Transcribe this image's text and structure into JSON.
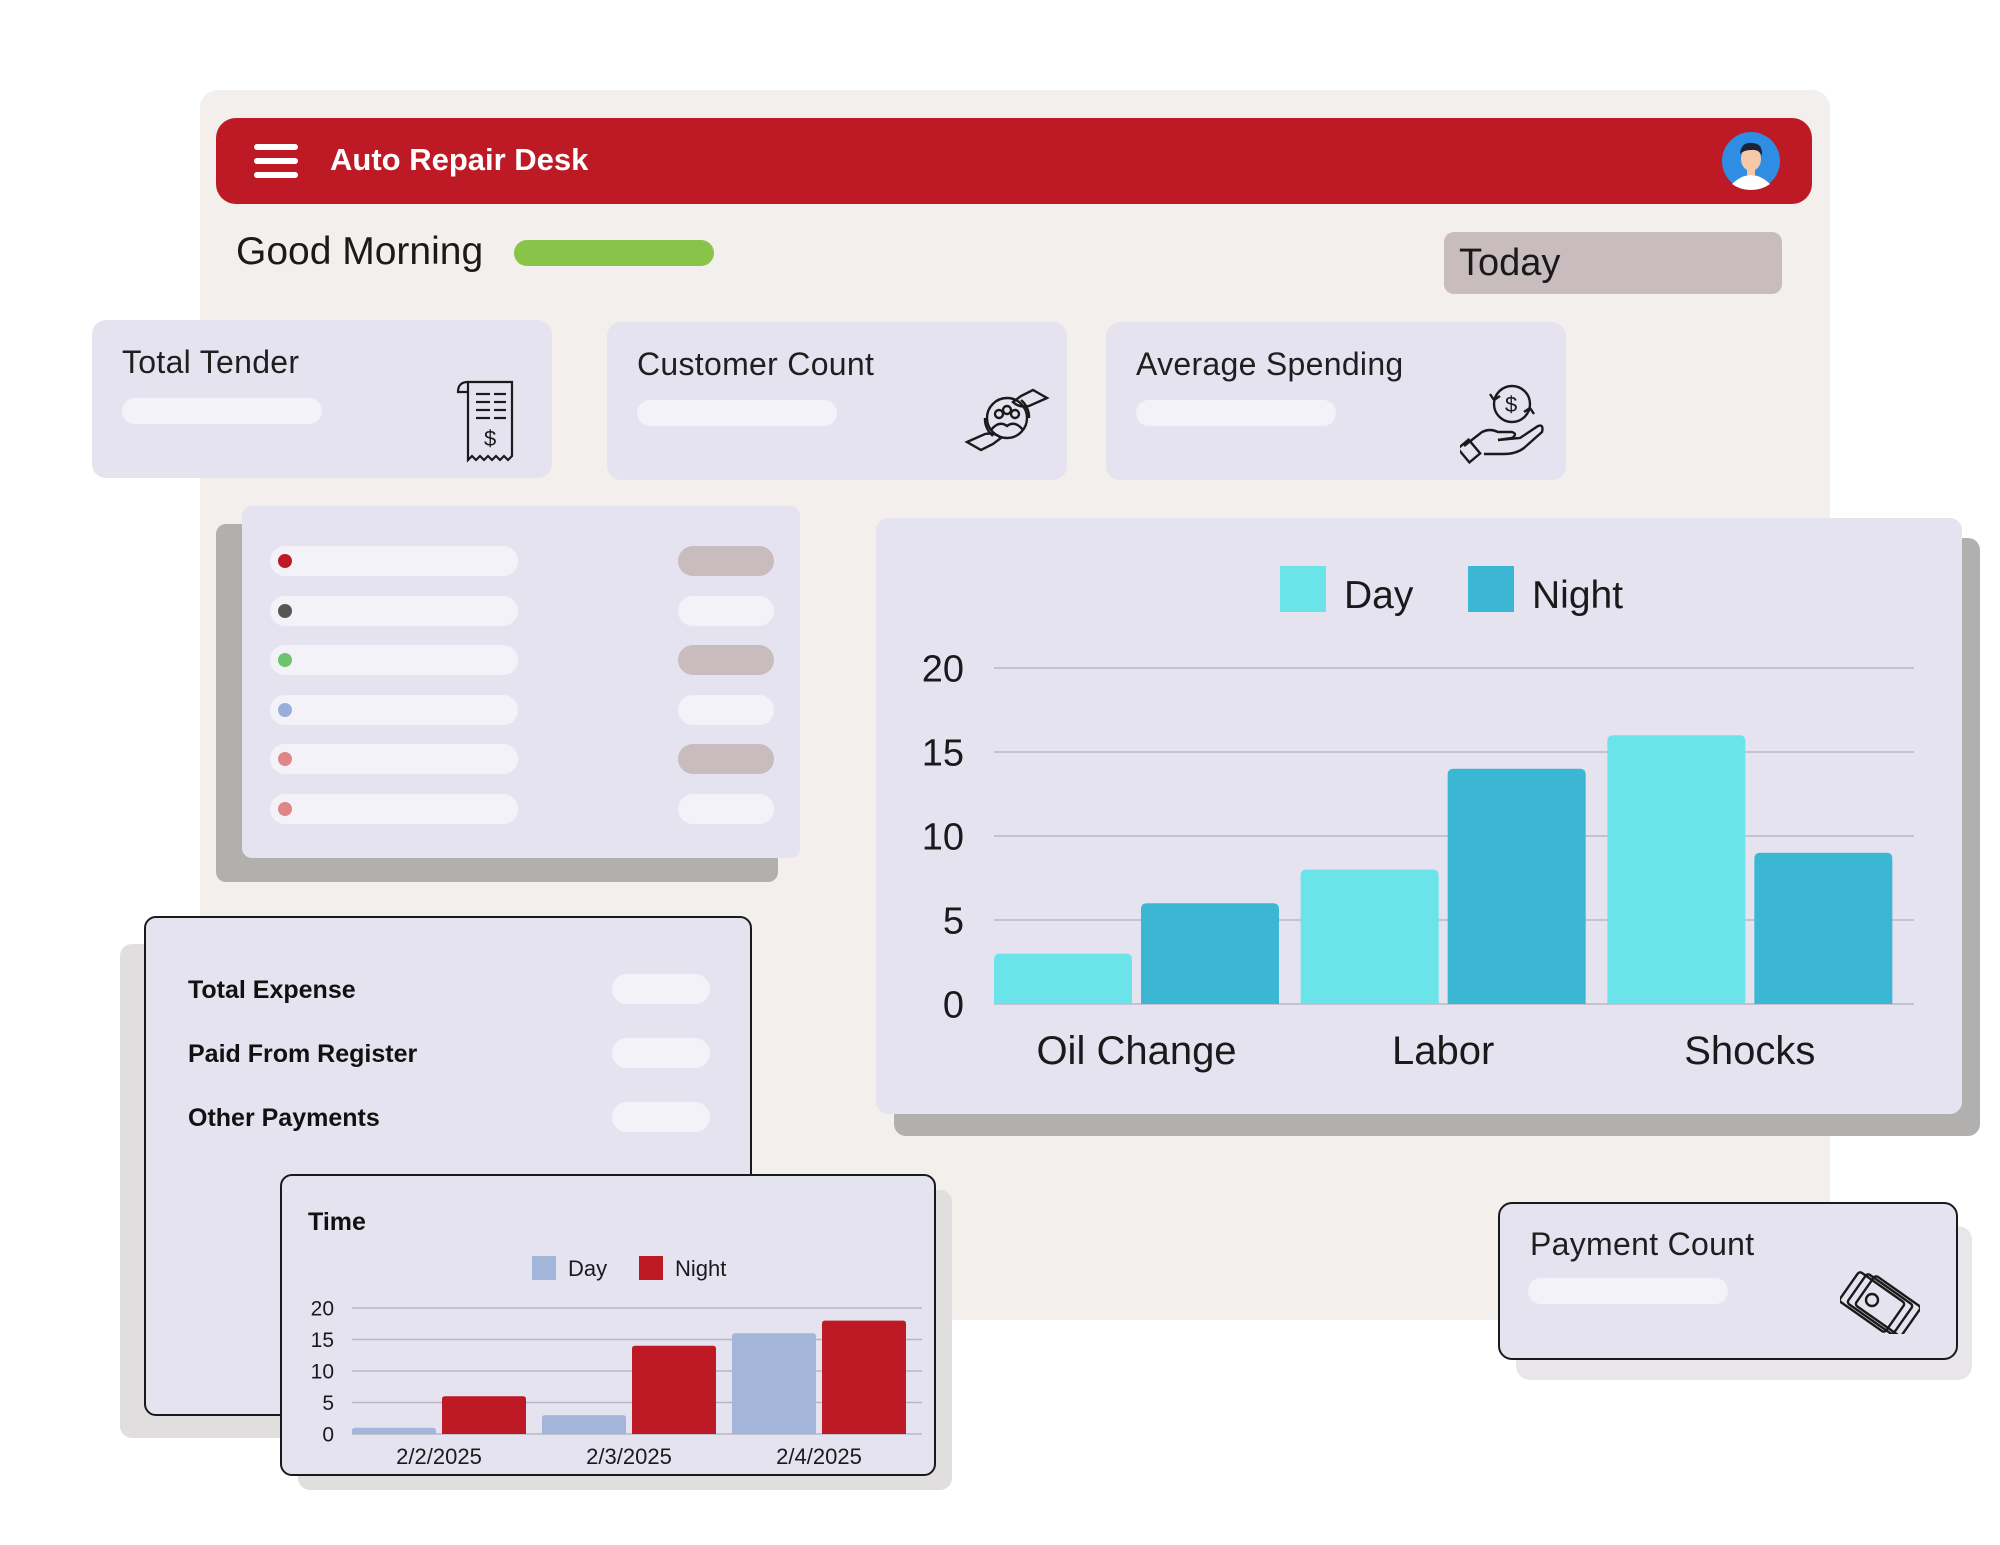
{
  "app": {
    "title": "Auto Repair Desk",
    "header_color": "#bd1a25",
    "menu_icon": "hamburger-menu-icon",
    "avatar_icon": "user-avatar-icon"
  },
  "greeting": {
    "text": "Good Morning",
    "bar_color": "#88c34a"
  },
  "period_select": {
    "value": "Today"
  },
  "metrics": [
    {
      "title": "Total Tender",
      "icon": "receipt-icon"
    },
    {
      "title": "Customer Count",
      "icon": "customers-hands-icon"
    },
    {
      "title": "Average Spending",
      "icon": "money-hand-icon"
    }
  ],
  "payment_card": {
    "title": "Payment Count",
    "icon": "cash-stack-icon"
  },
  "legend_list": {
    "dot_colors": [
      "#bd1a25",
      "#5a5555",
      "#6cc46c",
      "#9aaed8",
      "#e18585",
      "#e18585"
    ]
  },
  "expenses": {
    "rows": [
      {
        "label": "Total Expense"
      },
      {
        "label": "Paid From Register"
      },
      {
        "label": "Other Payments"
      }
    ]
  },
  "chart_data": [
    {
      "type": "bar",
      "categories": [
        "Oil Change",
        "Labor",
        "Shocks"
      ],
      "series": [
        {
          "name": "Day",
          "values": [
            3,
            8,
            16
          ],
          "color": "#6ae4e8"
        },
        {
          "name": "Night",
          "values": [
            6,
            14,
            9
          ],
          "color": "#3cb7d3"
        }
      ],
      "yticks": [
        "0",
        "5",
        "10",
        "15",
        "20"
      ],
      "ylim": [
        0,
        20
      ],
      "grid": true,
      "legend": "top-center"
    },
    {
      "type": "bar",
      "title": "Time",
      "categories": [
        "2/2/2025",
        "2/3/2025",
        "2/4/2025"
      ],
      "series": [
        {
          "name": "Day",
          "values": [
            1,
            3,
            16
          ],
          "color": "#a3b6da"
        },
        {
          "name": "Night",
          "values": [
            6,
            14,
            18
          ],
          "color": "#bd1a25"
        }
      ],
      "yticks": [
        "0",
        "5",
        "10",
        "15",
        "20"
      ],
      "ylim": [
        0,
        20
      ],
      "grid": true,
      "legend": "top-center"
    }
  ]
}
